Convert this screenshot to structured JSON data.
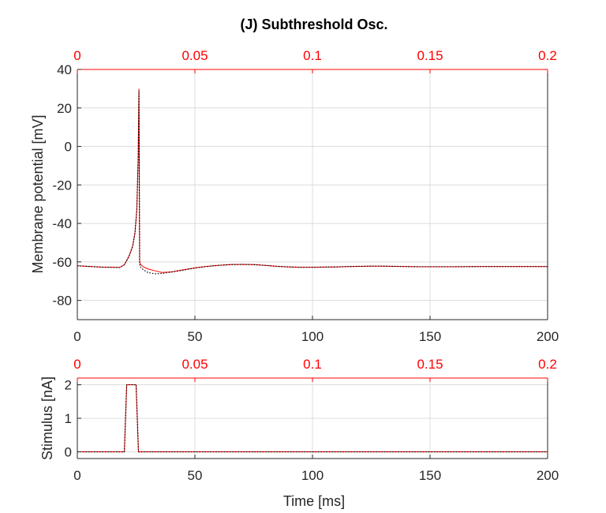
{
  "figure": {
    "title": "(J) Subthreshold Osc."
  },
  "colors": {
    "axis": "#262626",
    "secondary_axis": "#ff0000",
    "grid": "#dcdcdc",
    "trace_primary": "#ff0000",
    "trace_secondary": "#000000"
  },
  "chart_data": [
    {
      "type": "line",
      "title": "(J) Subthreshold Osc.",
      "xlabel": "",
      "ylabel": "Membrane potential [mV]",
      "xlim": [
        0,
        200
      ],
      "ylim": [
        -90,
        40
      ],
      "x_ticks": [
        0,
        50,
        100,
        150,
        200
      ],
      "x_tick_labels": [
        "0",
        "50",
        "100",
        "150",
        "200"
      ],
      "y_ticks": [
        -80,
        -60,
        -40,
        -20,
        0,
        20,
        40
      ],
      "y_tick_labels": [
        "-80",
        "-60",
        "-40",
        "-20",
        "0",
        "20",
        "40"
      ],
      "top_xlim": [
        0,
        0.2
      ],
      "top_x_ticks": [
        0,
        0.05,
        0.1,
        0.15,
        0.2
      ],
      "top_x_tick_labels": [
        "0",
        "0.05",
        "0.1",
        "0.15",
        "0.2"
      ],
      "grid": true,
      "series": [
        {
          "style": "solid",
          "color": "#ff0000",
          "x": [
            0,
            10,
            18,
            20,
            22,
            23.5,
            24.5,
            25.3,
            25.9,
            26.2,
            26.5,
            26.7,
            28,
            30,
            33,
            36,
            40,
            45,
            50,
            55,
            60,
            65,
            70,
            75,
            80,
            85,
            90,
            95,
            100,
            105,
            110,
            115,
            120,
            125,
            130,
            135,
            140,
            145,
            150,
            160,
            170,
            180,
            190,
            200
          ],
          "y": [
            -62,
            -62.7,
            -62.9,
            -61.5,
            -57,
            -52,
            -45,
            -33,
            -5,
            30,
            -59,
            -61,
            -62.5,
            -63.6,
            -64.6,
            -65.5,
            -65.2,
            -64.1,
            -63.1,
            -62.3,
            -61.8,
            -61.4,
            -61.3,
            -61.4,
            -61.8,
            -62.3,
            -62.6,
            -62.8,
            -62.8,
            -62.7,
            -62.6,
            -62.4,
            -62.3,
            -62.2,
            -62.2,
            -62.3,
            -62.4,
            -62.5,
            -62.5,
            -62.5,
            -62.4,
            -62.4,
            -62.4,
            -62.4
          ]
        },
        {
          "style": "dotted",
          "color": "#000000",
          "x": [
            0,
            10,
            18,
            20,
            22,
            23.5,
            24.5,
            25.3,
            25.9,
            26.2,
            26.5,
            26.7,
            28,
            30,
            33,
            36,
            40,
            45,
            50,
            55,
            60,
            65,
            70,
            75,
            80,
            85,
            90,
            95,
            100,
            105,
            110,
            115,
            120,
            125,
            130,
            135,
            140,
            145,
            150,
            160,
            170,
            180,
            190,
            200
          ],
          "y": [
            -62,
            -62.7,
            -62.9,
            -61.5,
            -57,
            -52,
            -45,
            -33,
            -5,
            29,
            -61,
            -62.5,
            -64,
            -65.5,
            -66.2,
            -66,
            -65.3,
            -64.3,
            -63.2,
            -62.4,
            -61.8,
            -61.4,
            -61.3,
            -61.4,
            -61.8,
            -62.3,
            -62.6,
            -62.8,
            -62.8,
            -62.7,
            -62.6,
            -62.4,
            -62.3,
            -62.2,
            -62.2,
            -62.3,
            -62.4,
            -62.5,
            -62.5,
            -62.5,
            -62.4,
            -62.4,
            -62.4,
            -62.4
          ]
        }
      ]
    },
    {
      "type": "line",
      "xlabel": "Time [ms]",
      "ylabel": "Stimulus [nA]",
      "xlim": [
        0,
        200
      ],
      "ylim": [
        -0.2,
        2.2
      ],
      "x_ticks": [
        0,
        50,
        100,
        150,
        200
      ],
      "x_tick_labels": [
        "0",
        "50",
        "100",
        "150",
        "200"
      ],
      "y_ticks": [
        0,
        1,
        2
      ],
      "y_tick_labels": [
        "0",
        "1",
        "2"
      ],
      "top_xlim": [
        0,
        0.2
      ],
      "top_x_ticks": [
        0,
        0.05,
        0.1,
        0.15,
        0.2
      ],
      "top_x_tick_labels": [
        "0",
        "0.05",
        "0.1",
        "0.15",
        "0.2"
      ],
      "grid": true,
      "series": [
        {
          "style": "solid",
          "color": "#ff0000",
          "x": [
            0,
            20,
            21,
            25,
            26,
            200
          ],
          "y": [
            0,
            0,
            2,
            2,
            0,
            0
          ]
        },
        {
          "style": "dotted",
          "color": "#000000",
          "x": [
            0,
            20,
            21,
            25,
            26,
            200
          ],
          "y": [
            0,
            0,
            2,
            2,
            0,
            0
          ]
        }
      ]
    }
  ]
}
